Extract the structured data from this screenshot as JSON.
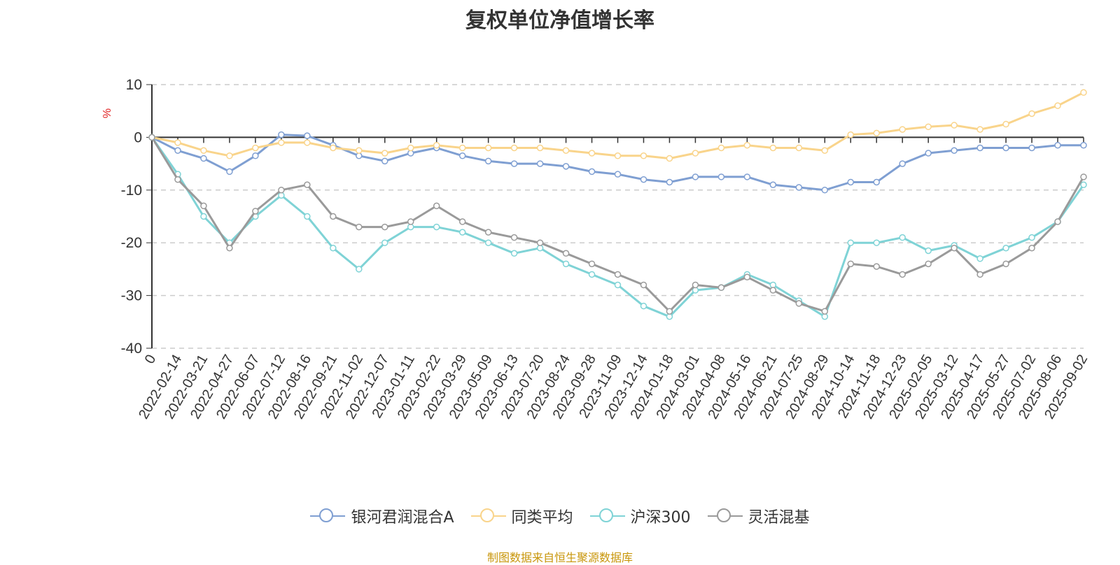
{
  "chart_data": {
    "type": "line",
    "title": "复权单位净值增长率",
    "ylabel": "%",
    "ylim": [
      -40,
      10
    ],
    "yticks": [
      10,
      0,
      -10,
      -20,
      -30,
      -40
    ],
    "grid": true,
    "legend_position": "bottom",
    "x": [
      "0",
      "2022-02-14",
      "2022-03-21",
      "2022-04-27",
      "2022-06-07",
      "2022-07-12",
      "2022-08-16",
      "2022-09-21",
      "2022-11-02",
      "2022-12-07",
      "2023-01-11",
      "2023-02-22",
      "2023-03-29",
      "2023-05-09",
      "2023-06-13",
      "2023-07-20",
      "2023-08-24",
      "2023-09-28",
      "2023-11-09",
      "2023-12-14",
      "2024-01-18",
      "2024-03-01",
      "2024-04-08",
      "2024-05-16",
      "2024-06-21",
      "2024-07-25",
      "2024-08-29",
      "2024-10-14",
      "2024-11-18",
      "2024-12-23",
      "2025-02-05",
      "2025-03-12",
      "2025-04-17",
      "2025-05-27",
      "2025-07-02",
      "2025-08-06",
      "2025-09-02"
    ],
    "series": [
      {
        "name": "银河君润混合A",
        "color": "#7f9fd2",
        "values": [
          0,
          -2.5,
          -4,
          -6.5,
          -3.5,
          0.5,
          0.3,
          -1.5,
          -3.5,
          -4.5,
          -3,
          -2,
          -3.5,
          -4.5,
          -5,
          -5,
          -5.5,
          -6.5,
          -7,
          -8,
          -8.5,
          -7.5,
          -7.5,
          -7.5,
          -9,
          -9.5,
          -10,
          -8.5,
          -8.5,
          -5,
          -3,
          -2.5,
          -2,
          -2,
          -2,
          -1.5,
          -1.5
        ]
      },
      {
        "name": "同类平均",
        "color": "#f9d48b",
        "values": [
          0,
          -1,
          -2.5,
          -3.5,
          -2,
          -1,
          -1,
          -2,
          -2.5,
          -3,
          -2,
          -1.5,
          -2,
          -2,
          -2,
          -2,
          -2.5,
          -3,
          -3.5,
          -3.5,
          -4,
          -3,
          -2,
          -1.5,
          -2,
          -2,
          -2.5,
          0.5,
          0.8,
          1.5,
          2,
          2.3,
          1.5,
          2.5,
          4.5,
          6,
          8.5
        ]
      },
      {
        "name": "沪深300",
        "color": "#7fd3d6",
        "values": [
          0,
          -7,
          -15,
          -20,
          -15,
          -11,
          -15,
          -21,
          -25,
          -20,
          -17,
          -17,
          -18,
          -20,
          -22,
          -21,
          -24,
          -26,
          -28,
          -32,
          -34,
          -29,
          -28.5,
          -26,
          -28,
          -31,
          -34,
          -20,
          -20,
          -19,
          -21.5,
          -20.5,
          -23,
          -21,
          -19,
          -16,
          -9
        ]
      },
      {
        "name": "灵活混基",
        "color": "#9a9a9a",
        "values": [
          0,
          -8,
          -13,
          -21,
          -14,
          -10,
          -9,
          -15,
          -17,
          -17,
          -16,
          -13,
          -16,
          -18,
          -19,
          -20,
          -22,
          -24,
          -26,
          -28,
          -33,
          -28,
          -28.5,
          -26.5,
          -29,
          -31.5,
          -33,
          -24,
          -24.5,
          -26,
          -24,
          -21,
          -26,
          -24,
          -21,
          -16,
          -7.5
        ]
      }
    ]
  },
  "footer": {
    "source": "制图数据来自恒生聚源数据库"
  }
}
